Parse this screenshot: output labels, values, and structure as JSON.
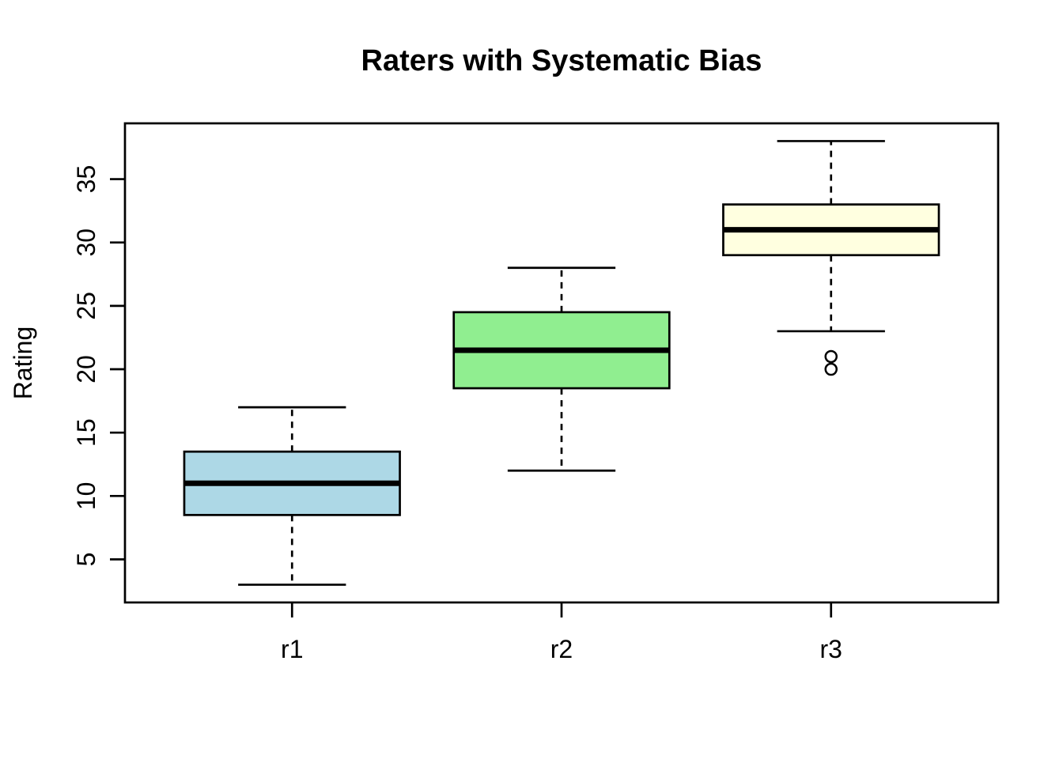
{
  "page": {
    "background": "#FFFFFF",
    "ink_color": "#000000"
  },
  "chart_data": {
    "type": "boxplot",
    "title": "Raters with Systematic Bias",
    "xlabel": "",
    "ylabel": "Rating",
    "categories": [
      "r1",
      "r2",
      "r3"
    ],
    "y_ticks": [
      5,
      10,
      15,
      20,
      25,
      30,
      35
    ],
    "ylim": [
      1.6,
      39.4
    ],
    "grid": false,
    "legend": "none",
    "series": [
      {
        "name": "r1",
        "fill": "#ADD8E6",
        "whisker_low": 3,
        "q1": 8.5,
        "median": 11,
        "q3": 13.5,
        "whisker_high": 17,
        "outliers": []
      },
      {
        "name": "r2",
        "fill": "#90EE90",
        "whisker_low": 12,
        "q1": 18.5,
        "median": 21.5,
        "q3": 24.5,
        "whisker_high": 28,
        "outliers": []
      },
      {
        "name": "r3",
        "fill": "#FFFFE0",
        "whisker_low": 23,
        "q1": 29,
        "median": 31,
        "q3": 33,
        "whisker_high": 38,
        "outliers": [
          21,
          20
        ]
      }
    ]
  }
}
